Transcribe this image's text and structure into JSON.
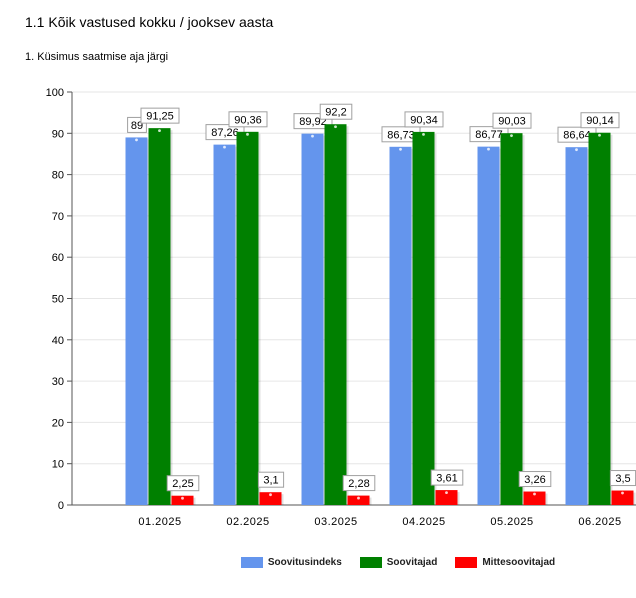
{
  "header": {
    "title": "1.1 Kõik vastused kokku / jooksev aasta",
    "subtitle": "1. Küsimus saatmise aja järgi"
  },
  "chart_data": {
    "type": "bar",
    "categories": [
      "01.2025",
      "02.2025",
      "03.2025",
      "04.2025",
      "05.2025",
      "06.2025"
    ],
    "series": [
      {
        "name": "Soovitusindeks",
        "color": "#6495ed",
        "values": [
          89,
          87.26,
          89.92,
          86.73,
          86.77,
          86.64
        ],
        "labels": [
          "89",
          "87,26",
          "89,92",
          "86,73",
          "86,77",
          "86,64"
        ]
      },
      {
        "name": "Soovitajad",
        "color": "#008000",
        "values": [
          91.25,
          90.36,
          92.2,
          90.34,
          90.03,
          90.14
        ],
        "labels": [
          "91,25",
          "90,36",
          "92,2",
          "90,34",
          "90,03",
          "90,14"
        ]
      },
      {
        "name": "Mittesoovitajad",
        "color": "#ff0000",
        "values": [
          2.25,
          3.1,
          2.28,
          3.61,
          3.26,
          3.5
        ],
        "labels": [
          "2,25",
          "3,1",
          "2,28",
          "3,61",
          "3,26",
          "3,5"
        ]
      }
    ],
    "ylim": [
      0,
      100
    ],
    "yticks": [
      0,
      10,
      20,
      30,
      40,
      50,
      60,
      70,
      80,
      90,
      100
    ],
    "grid": true,
    "legend": "bottom"
  }
}
